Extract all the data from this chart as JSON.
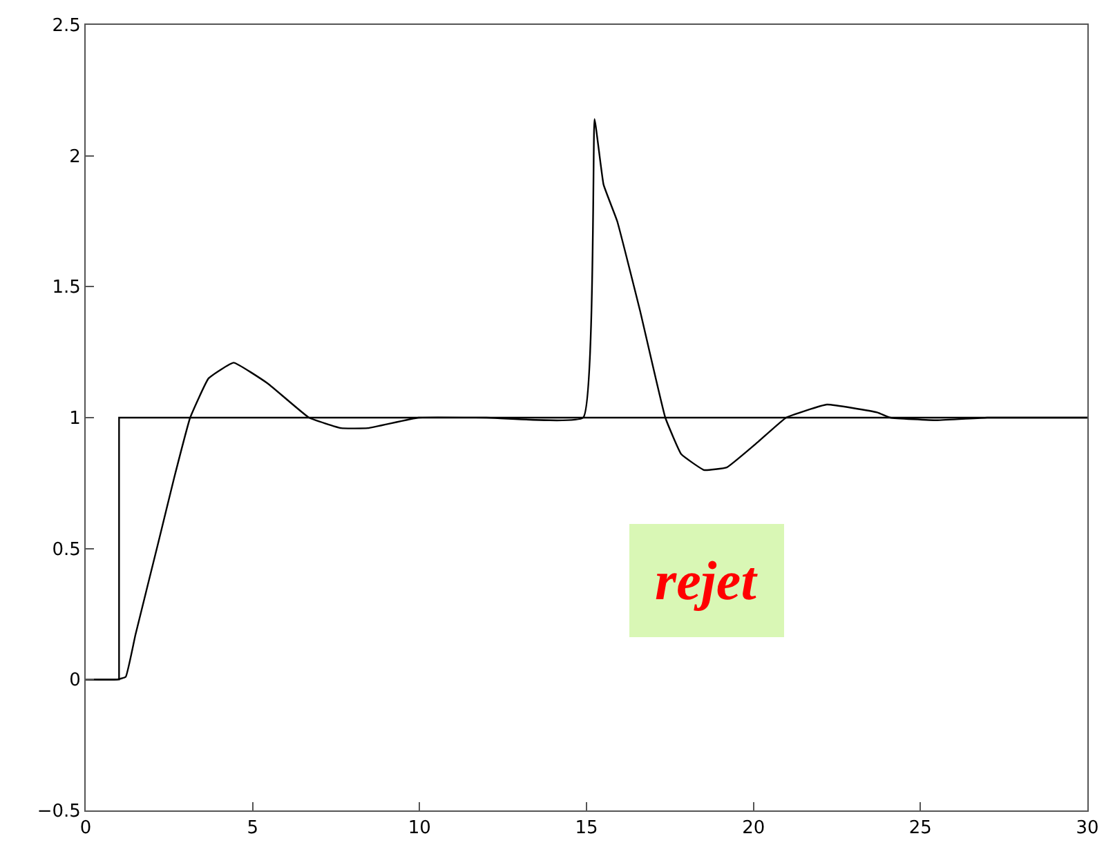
{
  "chart_data": {
    "type": "line",
    "xlim": [
      0,
      30
    ],
    "ylim": [
      -0.5,
      2.5
    ],
    "xticks": [
      0,
      5,
      10,
      15,
      20,
      25,
      30
    ],
    "yticks": [
      -0.5,
      0,
      0.5,
      1,
      1.5,
      2,
      2.5
    ],
    "marker": "none",
    "line_style": "solid",
    "annotations": [
      "rejet"
    ],
    "series": [
      {
        "color": "#000000",
        "x": [
          0,
          1,
          1,
          30
        ],
        "values": [
          0,
          0,
          1,
          1
        ]
      },
      {
        "color": "#000000",
        "x": [
          0,
          0.94,
          1.2,
          1.49,
          2.17,
          2.65,
          3.13,
          3.68,
          4.43,
          5.46,
          6.69,
          7.65,
          8.45,
          9.97,
          12,
          14.9,
          15.24,
          15.51,
          15.92,
          16.6,
          17.36,
          17.84,
          18.52,
          19.2,
          20.16,
          20.98,
          22.2,
          23.7,
          24.1,
          25.5,
          27,
          30
        ],
        "values": [
          0,
          0,
          0.01,
          0.17,
          0.52,
          0.77,
          1.0,
          1.15,
          1.21,
          1.13,
          1.0,
          0.96,
          0.96,
          1.0,
          1.0,
          1.0,
          2.14,
          1.89,
          1.75,
          1.41,
          1.0,
          0.86,
          0.8,
          0.81,
          0.91,
          1.0,
          1.05,
          1.02,
          1.0,
          0.99,
          1.0,
          1.0
        ]
      }
    ]
  }
}
